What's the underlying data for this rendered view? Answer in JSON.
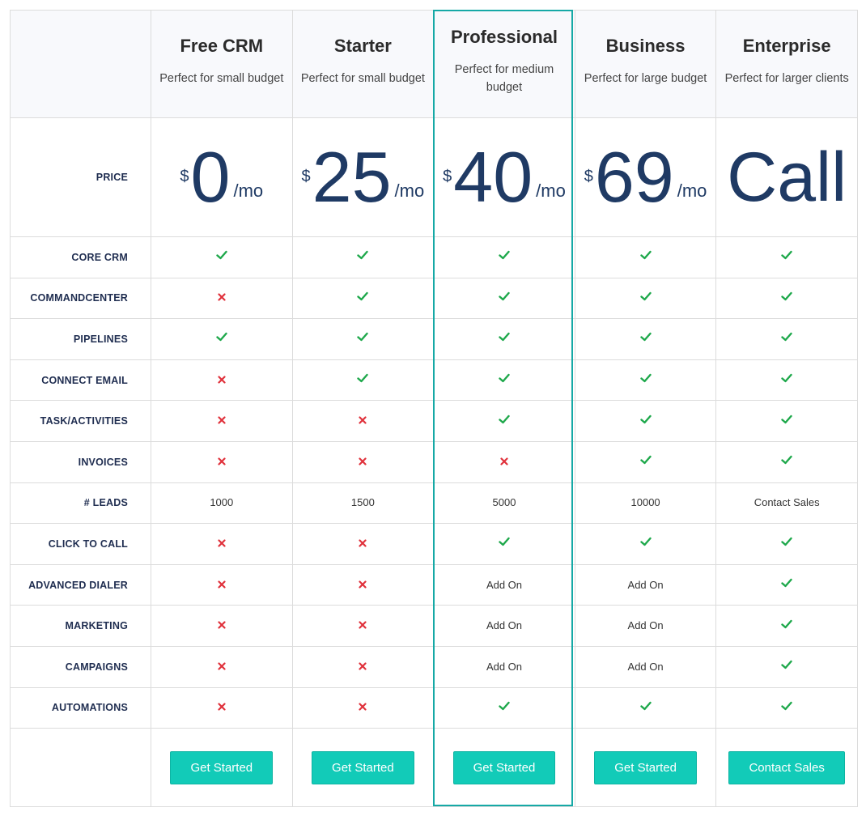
{
  "colors": {
    "accent": "#12cbb8",
    "highlight_border": "#16a9a6",
    "check": "#1ea84b",
    "cross": "#e0313b",
    "price": "#1f3a64"
  },
  "plans": [
    {
      "name": "Free CRM",
      "desc": "Perfect for small budget",
      "currency": "$",
      "amount": "0",
      "per": "/mo",
      "button": "Get Started"
    },
    {
      "name": "Starter",
      "desc": "Perfect for small budget",
      "currency": "$",
      "amount": "25",
      "per": "/mo",
      "button": "Get Started"
    },
    {
      "name": "Professional",
      "desc": "Perfect for medium budget",
      "currency": "$",
      "amount": "40",
      "per": "/mo",
      "button": "Get Started"
    },
    {
      "name": "Business",
      "desc": "Perfect for large budget",
      "currency": "$",
      "amount": "69",
      "per": "/mo",
      "button": "Get Started"
    },
    {
      "name": "Enterprise",
      "desc": "Perfect for larger clients",
      "amount": "Call",
      "button": "Contact Sales"
    }
  ],
  "price_label": "PRICE",
  "features": [
    {
      "label": "CORE CRM",
      "values": [
        "check",
        "check",
        "check",
        "check",
        "check"
      ]
    },
    {
      "label": "COMMANDCENTER",
      "values": [
        "cross",
        "check",
        "check",
        "check",
        "check"
      ]
    },
    {
      "label": "PIPELINES",
      "values": [
        "check",
        "check",
        "check",
        "check",
        "check"
      ]
    },
    {
      "label": "CONNECT EMAIL",
      "values": [
        "cross",
        "check",
        "check",
        "check",
        "check"
      ]
    },
    {
      "label": "TASK/ACTIVITIES",
      "values": [
        "cross",
        "cross",
        "check",
        "check",
        "check"
      ]
    },
    {
      "label": "INVOICES",
      "values": [
        "cross",
        "cross",
        "cross",
        "check",
        "check"
      ]
    },
    {
      "label": "# LEADS",
      "values": [
        "1000",
        "1500",
        "5000",
        "10000",
        "Contact Sales"
      ]
    },
    {
      "label": "CLICK TO CALL",
      "values": [
        "cross",
        "cross",
        "check",
        "check",
        "check"
      ]
    },
    {
      "label": "ADVANCED DIALER",
      "values": [
        "cross",
        "cross",
        "Add On",
        "Add On",
        "check"
      ]
    },
    {
      "label": "MARKETING",
      "values": [
        "cross",
        "cross",
        "Add On",
        "Add On",
        "check"
      ]
    },
    {
      "label": "CAMPAIGNS",
      "values": [
        "cross",
        "cross",
        "Add On",
        "Add On",
        "check"
      ]
    },
    {
      "label": "AUTOMATIONS",
      "values": [
        "cross",
        "cross",
        "check",
        "check",
        "check"
      ]
    }
  ]
}
